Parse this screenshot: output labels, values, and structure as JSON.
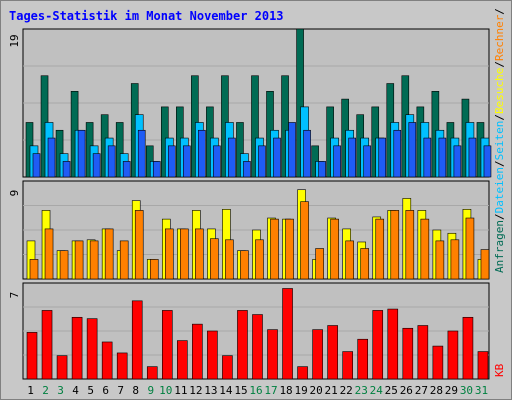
{
  "chart_data": {
    "title": "Tages-Statistik im Monat November 2013",
    "type": "bar",
    "x_labels": [
      "1",
      "2",
      "3",
      "4",
      "5",
      "6",
      "7",
      "8",
      "9",
      "10",
      "11",
      "12",
      "13",
      "14",
      "15",
      "16",
      "17",
      "18",
      "19",
      "20",
      "21",
      "22",
      "23",
      "24",
      "25",
      "26",
      "27",
      "28",
      "29",
      "30",
      "31"
    ],
    "weekend_days": [
      2,
      3,
      9,
      10,
      16,
      17,
      23,
      24,
      30,
      31
    ],
    "right_axis_label_parts": [
      "Anfragen",
      "/",
      "Dateien",
      "/",
      "Seiten",
      "/",
      "Besuche",
      "/",
      "Rechner",
      "/",
      "KB"
    ],
    "panels": [
      {
        "name": "top",
        "ymax_label": "19",
        "ymax": 19,
        "series": [
          {
            "name": "Anfragen",
            "values": [
              7,
              13,
              6,
              11,
              7,
              8,
              7,
              12,
              4,
              9,
              9,
              13,
              9,
              13,
              7,
              13,
              11,
              13,
              19,
              4,
              9,
              10,
              8,
              9,
              12,
              13,
              9,
              11,
              7,
              10,
              7
            ]
          },
          {
            "name": "Dateien",
            "values": [
              4,
              7,
              3,
              6,
              4,
              5,
              3,
              8,
              2,
              5,
              5,
              7,
              5,
              7,
              3,
              5,
              6,
              6,
              9,
              2,
              5,
              6,
              5,
              5,
              7,
              8,
              7,
              6,
              5,
              7,
              5
            ]
          },
          {
            "name": "Seiten",
            "values": [
              3,
              5,
              2,
              6,
              3,
              4,
              2,
              6,
              2,
              4,
              4,
              6,
              4,
              5,
              2,
              4,
              5,
              7,
              6,
              2,
              4,
              5,
              4,
              5,
              6,
              7,
              5,
              5,
              4,
              5,
              4
            ]
          }
        ]
      },
      {
        "name": "middle",
        "ymax_label": "9",
        "ymax": 9,
        "series": [
          {
            "name": "Besuche",
            "values": [
              3.5,
              6.3,
              2.6,
              3.5,
              3.6,
              4.6,
              2.6,
              7.2,
              1.8,
              5.5,
              4.6,
              6.3,
              4.6,
              6.4,
              2.6,
              4.5,
              5.6,
              5.5,
              8.2,
              1.8,
              5.6,
              4.6,
              3.4,
              5.7,
              6.3,
              7.4,
              6.3,
              4.5,
              4.2,
              6.4,
              1.8
            ]
          },
          {
            "name": "Rechner",
            "values": [
              1.8,
              4.6,
              2.6,
              3.5,
              3.5,
              4.6,
              3.5,
              6.3,
              1.8,
              4.6,
              4.6,
              4.6,
              3.7,
              3.6,
              2.6,
              3.6,
              5.5,
              5.5,
              7.1,
              2.8,
              5.5,
              3.5,
              2.8,
              5.5,
              6.3,
              6.3,
              5.5,
              3.5,
              3.6,
              5.6,
              2.7
            ]
          }
        ]
      },
      {
        "name": "bottom",
        "ymax_label": "7",
        "ymax": 7,
        "series": [
          {
            "name": "KB",
            "values": [
              3.4,
              5.0,
              1.7,
              4.5,
              4.4,
              2.7,
              1.9,
              5.7,
              0.9,
              5.0,
              2.8,
              4.0,
              3.5,
              1.7,
              5.0,
              4.7,
              3.6,
              6.6,
              0.9,
              3.6,
              3.9,
              2.0,
              2.9,
              5.0,
              5.1,
              3.7,
              3.9,
              2.4,
              3.5,
              4.5,
              2.0
            ]
          }
        ]
      }
    ],
    "colors": {
      "Anfragen": "#006b54",
      "Dateien": "#00c0ff",
      "Seiten": "#1f5cf5",
      "Besuche": "#ffff00",
      "Rechner": "#ff8000",
      "KB": "#ff0000",
      "title": "#0000ff",
      "weekday_label": "#000000",
      "weekend_label": "#008040",
      "plot_bg": "#c0c0c0",
      "frame_bg": "#c8c8c8"
    }
  }
}
